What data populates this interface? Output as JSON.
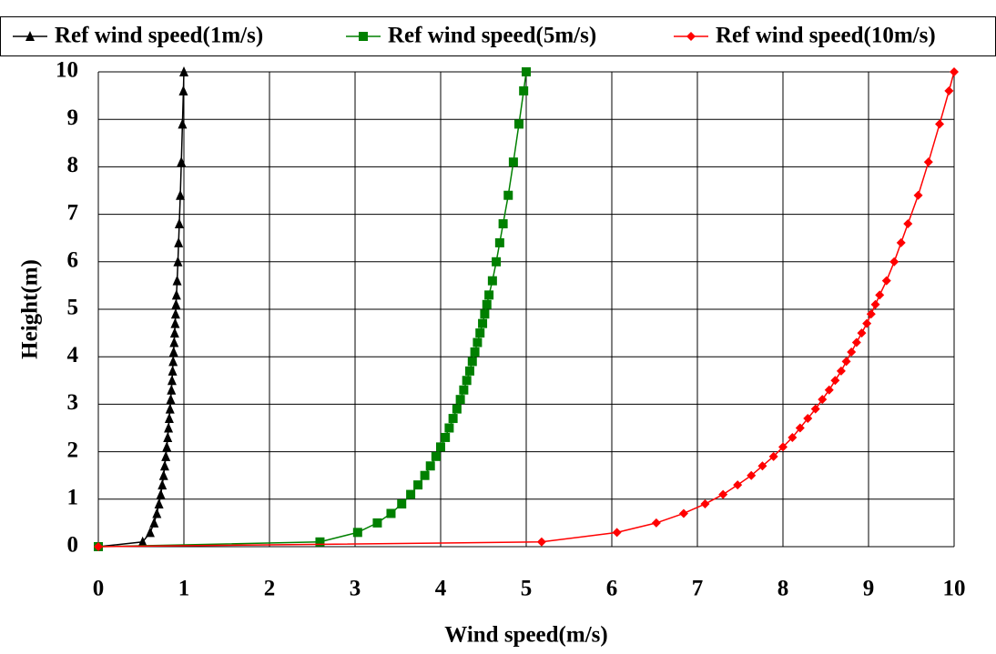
{
  "chart_data": {
    "type": "line",
    "x_label": "Wind speed(m/s)",
    "y_label": "Height(m)",
    "xlim": [
      0,
      10
    ],
    "ylim": [
      0,
      10
    ],
    "xticks": [
      0,
      1,
      2,
      3,
      4,
      5,
      6,
      7,
      8,
      9,
      10
    ],
    "yticks": [
      0,
      1,
      2,
      3,
      4,
      5,
      6,
      7,
      8,
      9,
      10
    ],
    "grid": true,
    "legend": "top",
    "series": [
      {
        "name": "Ref wind speed(1m/s)",
        "color": "#000000",
        "marker": "triangle",
        "x": [
          0,
          0.518,
          0.606,
          0.652,
          0.684,
          0.709,
          0.73,
          0.747,
          0.763,
          0.776,
          0.789,
          0.8,
          0.811,
          0.82,
          0.829,
          0.838,
          0.846,
          0.854,
          0.861,
          0.868,
          0.874,
          0.88,
          0.886,
          0.892,
          0.898,
          0.903,
          0.908,
          0.913,
          0.921,
          0.93,
          0.938,
          0.946,
          0.958,
          0.97,
          0.983,
          0.994,
          1
        ],
        "values": [
          0,
          0.1,
          0.3,
          0.5,
          0.7,
          0.9,
          1.1,
          1.3,
          1.5,
          1.7,
          1.9,
          2.1,
          2.3,
          2.5,
          2.7,
          2.9,
          3.1,
          3.3,
          3.5,
          3.7,
          3.9,
          4.1,
          4.3,
          4.5,
          4.7,
          4.9,
          5.1,
          5.3,
          5.6,
          6,
          6.4,
          6.8,
          7.4,
          8.1,
          8.9,
          9.6,
          10
        ]
      },
      {
        "name": "Ref wind speed(5m/s)",
        "color": "#008000",
        "marker": "square",
        "x": [
          0,
          2.59,
          3.03,
          3.26,
          3.42,
          3.545,
          3.65,
          3.735,
          3.815,
          3.88,
          3.945,
          4.0,
          4.055,
          4.1,
          4.145,
          4.19,
          4.23,
          4.27,
          4.305,
          4.34,
          4.37,
          4.4,
          4.43,
          4.46,
          4.49,
          4.515,
          4.54,
          4.565,
          4.605,
          4.65,
          4.69,
          4.73,
          4.79,
          4.85,
          4.915,
          4.97,
          5
        ],
        "values": [
          0,
          0.1,
          0.3,
          0.5,
          0.7,
          0.9,
          1.1,
          1.3,
          1.5,
          1.7,
          1.9,
          2.1,
          2.3,
          2.5,
          2.7,
          2.9,
          3.1,
          3.3,
          3.5,
          3.7,
          3.9,
          4.1,
          4.3,
          4.5,
          4.7,
          4.9,
          5.1,
          5.3,
          5.6,
          6,
          6.4,
          6.8,
          7.4,
          8.1,
          8.9,
          9.6,
          10
        ]
      },
      {
        "name": "Ref wind speed(10m/s)",
        "color": "#ff0000",
        "marker": "diamond",
        "x": [
          0,
          5.18,
          6.06,
          6.52,
          6.84,
          7.09,
          7.3,
          7.47,
          7.63,
          7.76,
          7.89,
          8.0,
          8.11,
          8.2,
          8.29,
          8.38,
          8.46,
          8.54,
          8.61,
          8.68,
          8.74,
          8.8,
          8.86,
          8.92,
          8.98,
          9.03,
          9.08,
          9.13,
          9.21,
          9.3,
          9.38,
          9.46,
          9.58,
          9.7,
          9.83,
          9.94,
          10
        ],
        "values": [
          0,
          0.1,
          0.3,
          0.5,
          0.7,
          0.9,
          1.1,
          1.3,
          1.5,
          1.7,
          1.9,
          2.1,
          2.3,
          2.5,
          2.7,
          2.9,
          3.1,
          3.3,
          3.5,
          3.7,
          3.9,
          4.1,
          4.3,
          4.5,
          4.7,
          4.9,
          5.1,
          5.3,
          5.6,
          6,
          6.4,
          6.8,
          7.4,
          8.1,
          8.9,
          9.6,
          10
        ]
      }
    ]
  }
}
